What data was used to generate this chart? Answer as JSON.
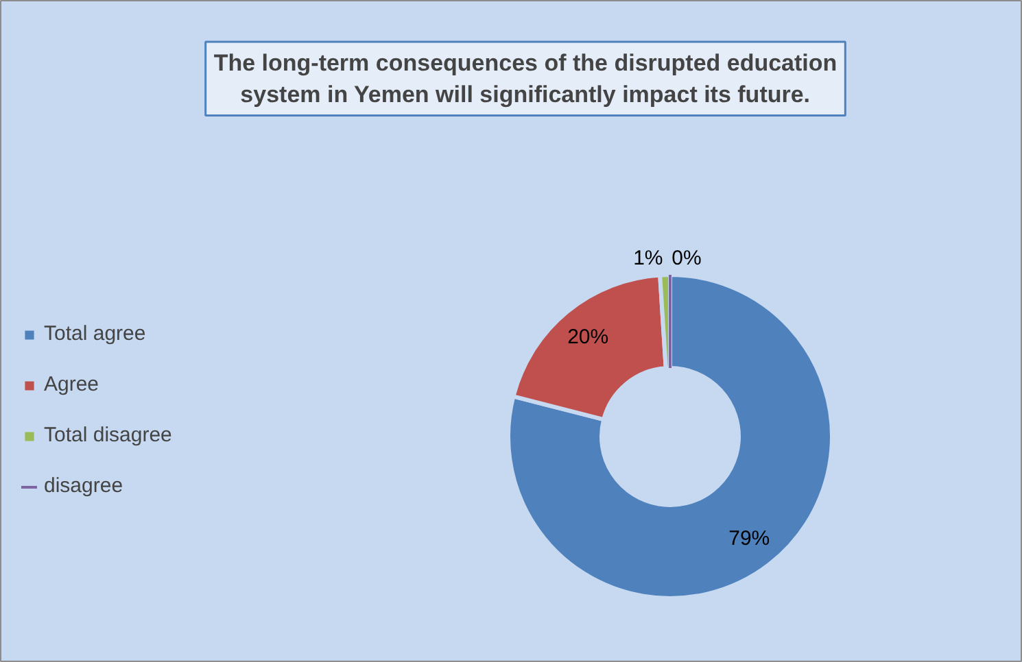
{
  "chart_data": {
    "type": "donut",
    "title": "The long-term consequences of the disrupted education\nsystem in Yemen will significantly impact its future.",
    "categories": [
      "Total agree",
      "Agree",
      "Total disagree",
      "disagree"
    ],
    "values": [
      79,
      20,
      1,
      0
    ],
    "colors": [
      "#4f81bd",
      "#c0504d",
      "#9bbb59",
      "#8064a2"
    ],
    "value_labels": [
      "79%",
      "20%",
      "1%",
      "0%"
    ],
    "legend": "left"
  }
}
